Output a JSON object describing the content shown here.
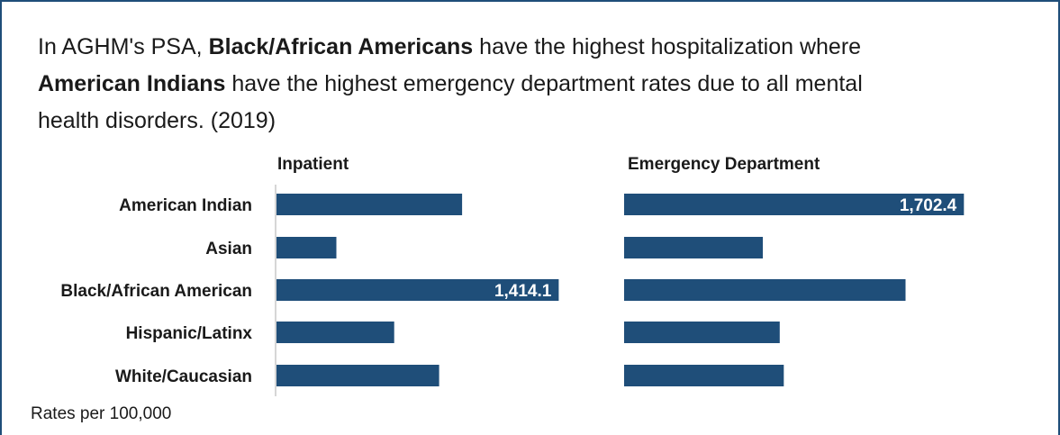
{
  "headline": {
    "part1": "In AGHM's PSA, ",
    "bold1": "Black/African Americans",
    "part2": " have the highest hospitalization where ",
    "bold2": "American Indians",
    "part3": " have the highest emergency department rates due to all mental health disorders. (2019)"
  },
  "footnote": "Rates per 100,000",
  "colors": {
    "bar": "#1f4e79",
    "axis": "#c8c8c8",
    "frame": "#1f4e79"
  },
  "chart_data": {
    "type": "bar",
    "orientation": "horizontal",
    "categories": [
      "American Indian",
      "Asian",
      "Black/African American",
      "Hispanic/Latinx",
      "White/Caucasian"
    ],
    "panels": [
      {
        "title": "Inpatient",
        "values": [
          930,
          300,
          1414.1,
          590,
          815
        ],
        "labels": [
          "",
          "",
          "1,414.1",
          "",
          ""
        ]
      },
      {
        "title": "Emergency Department",
        "values": [
          1702.4,
          695,
          1410,
          780,
          800
        ],
        "labels": [
          "1,702.4",
          "",
          "",
          "",
          ""
        ]
      }
    ]
  }
}
